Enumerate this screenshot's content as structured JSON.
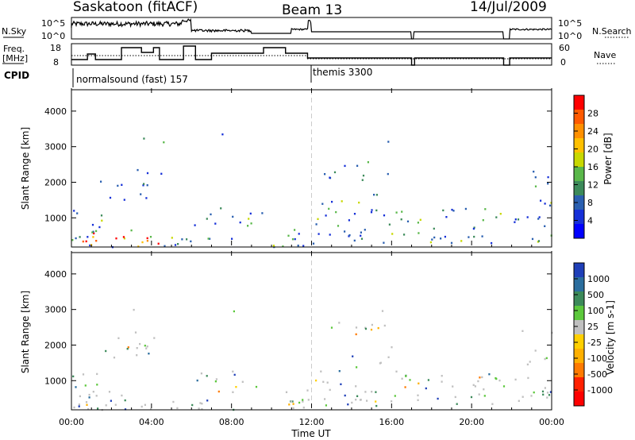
{
  "header": {
    "station": "Saskatoon (fitACF)",
    "beam": "Beam 13",
    "date": "14/Jul/2009"
  },
  "top_panels": {
    "nsky_label": "N.Sky",
    "nsearch_label": "N.Search",
    "freq_label_1": "Freq.",
    "freq_label_2": "[MHz]",
    "nave_label": "Nave",
    "cpid_label": "CPID",
    "nsky_ticks": [
      "10^5",
      "10^0"
    ],
    "nsearch_ticks": [
      "10^5",
      "10^0"
    ],
    "freq_ticks": [
      "18",
      "8"
    ],
    "nave_ticks": [
      "60",
      "0"
    ],
    "cpid_1": "normalsound (fast) 157",
    "cpid_2": "themis 3300"
  },
  "chart_data": [
    {
      "type": "heatmap",
      "panel": "power",
      "ylabel": "Slant Range [km]",
      "colorbar_label": "Power [dB]",
      "colorbar_ticks": [
        "28",
        "24",
        "20",
        "16",
        "12",
        "8",
        "4"
      ],
      "colorbar_colors": [
        "#ff0000",
        "#ff5a00",
        "#ff9000",
        "#ffc000",
        "#c8d800",
        "#5ab84a",
        "#3c8a5a",
        "#2a5fb0",
        "#1630d8",
        "#0000ff"
      ],
      "ylim": [
        180,
        4600
      ],
      "yticks": [
        1000,
        2000,
        3000,
        4000
      ],
      "xlim_hours": [
        0,
        24
      ]
    },
    {
      "type": "heatmap",
      "panel": "velocity",
      "ylabel": "Slant Range [km]",
      "colorbar_label": "Velocity [m s-1]",
      "colorbar_ticks": [
        "1000",
        "500",
        "100",
        "25",
        "-25",
        "-100",
        "-500",
        "-1000"
      ],
      "colorbar_colors": [
        "#1f3fb8",
        "#2b6e9e",
        "#3c8a5a",
        "#5cc83c",
        "#c0c0c0",
        "#ffd000",
        "#ffb000",
        "#ff7a00",
        "#ff2000",
        "#ff0000"
      ],
      "ylim": [
        180,
        4600
      ],
      "yticks": [
        1000,
        2000,
        3000,
        4000
      ],
      "xlim_hours": [
        0,
        24
      ]
    }
  ],
  "x_axis": {
    "ticks": [
      "00:00",
      "04:00",
      "08:00",
      "12:00",
      "16:00",
      "20:00",
      "00:00"
    ],
    "label": "Time UT"
  },
  "colors": {
    "power_dominant": "#2a55b5",
    "velocity_dominant": "#c0c0c0"
  }
}
